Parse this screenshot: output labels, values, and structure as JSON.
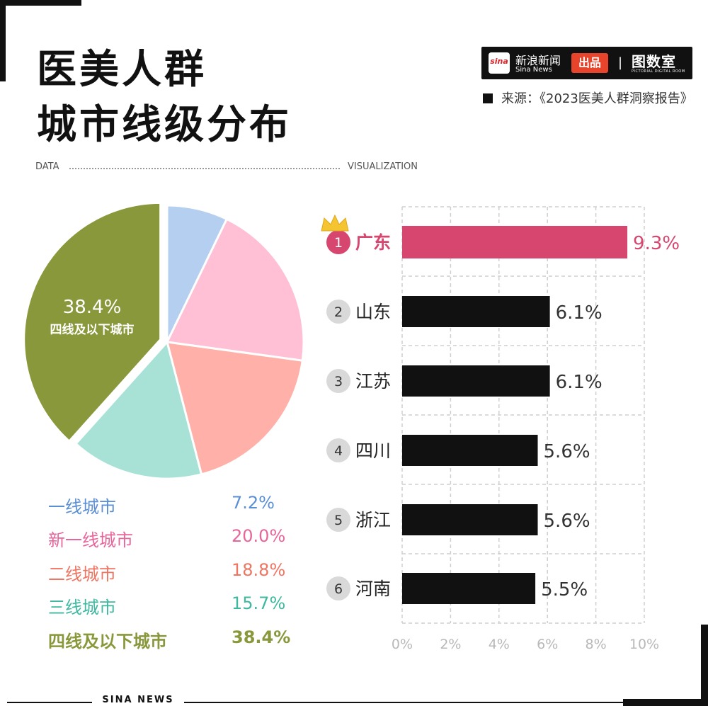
{
  "header": {
    "title_line1": "医美人群",
    "title_line2": "城市线级分布",
    "data_label": "DATA",
    "vis_label": "VISUALIZATION"
  },
  "brand": {
    "logo_text": "sina",
    "name_cn": "新浪新闻",
    "name_en": "Sina News",
    "badge": "出品",
    "separator": "|",
    "right_name": "图数室",
    "right_sub": "PICTORIAL DIGITAL ROOM"
  },
  "source": {
    "text": "来源：《2023医美人群洞察报告》"
  },
  "footer": {
    "text": "SINA NEWS"
  },
  "colors": {
    "tier1": "#b5cff0",
    "new_tier1": "#ffc0d5",
    "tier2": "#ffb0a8",
    "tier3": "#a8e2d6",
    "tier4": "#8a983c",
    "tier1_text": "#5b8fd4",
    "new_tier1_text": "#e8659a",
    "tier2_text": "#ef7562",
    "tier3_text": "#3fb8a0",
    "tier4_text": "#8a983c",
    "highlight_bar": "#d6466e",
    "bar": "#111111",
    "rank_circle": "#d9d9d9"
  },
  "chart_data": [
    {
      "type": "pie",
      "title": "",
      "slices": [
        {
          "label": "一线城市",
          "value": 7.2,
          "display": "7.2%"
        },
        {
          "label": "新一线城市",
          "value": 20.0,
          "display": "20.0%"
        },
        {
          "label": "二线城市",
          "value": 18.8,
          "display": "18.8%"
        },
        {
          "label": "三线城市",
          "value": 15.7,
          "display": "15.7%"
        },
        {
          "label": "四线及以下城市",
          "value": 38.4,
          "display": "38.4%"
        }
      ],
      "callout": {
        "value": "38.4%",
        "label": "四线及以下城市"
      }
    },
    {
      "type": "bar",
      "orientation": "horizontal",
      "title": "",
      "categories": [
        "广东",
        "山东",
        "江苏",
        "四川",
        "浙江",
        "河南"
      ],
      "ranks": [
        "1",
        "2",
        "3",
        "4",
        "5",
        "6"
      ],
      "values": [
        9.3,
        6.1,
        6.1,
        5.6,
        5.6,
        5.5
      ],
      "labels": [
        "9.3%",
        "6.1%",
        "6.1%",
        "5.6%",
        "5.6%",
        "5.5%"
      ],
      "xlim": [
        0,
        10
      ],
      "ticks": [
        "0%",
        "2%",
        "4%",
        "6%",
        "8%",
        "10%"
      ],
      "grid": true
    }
  ]
}
